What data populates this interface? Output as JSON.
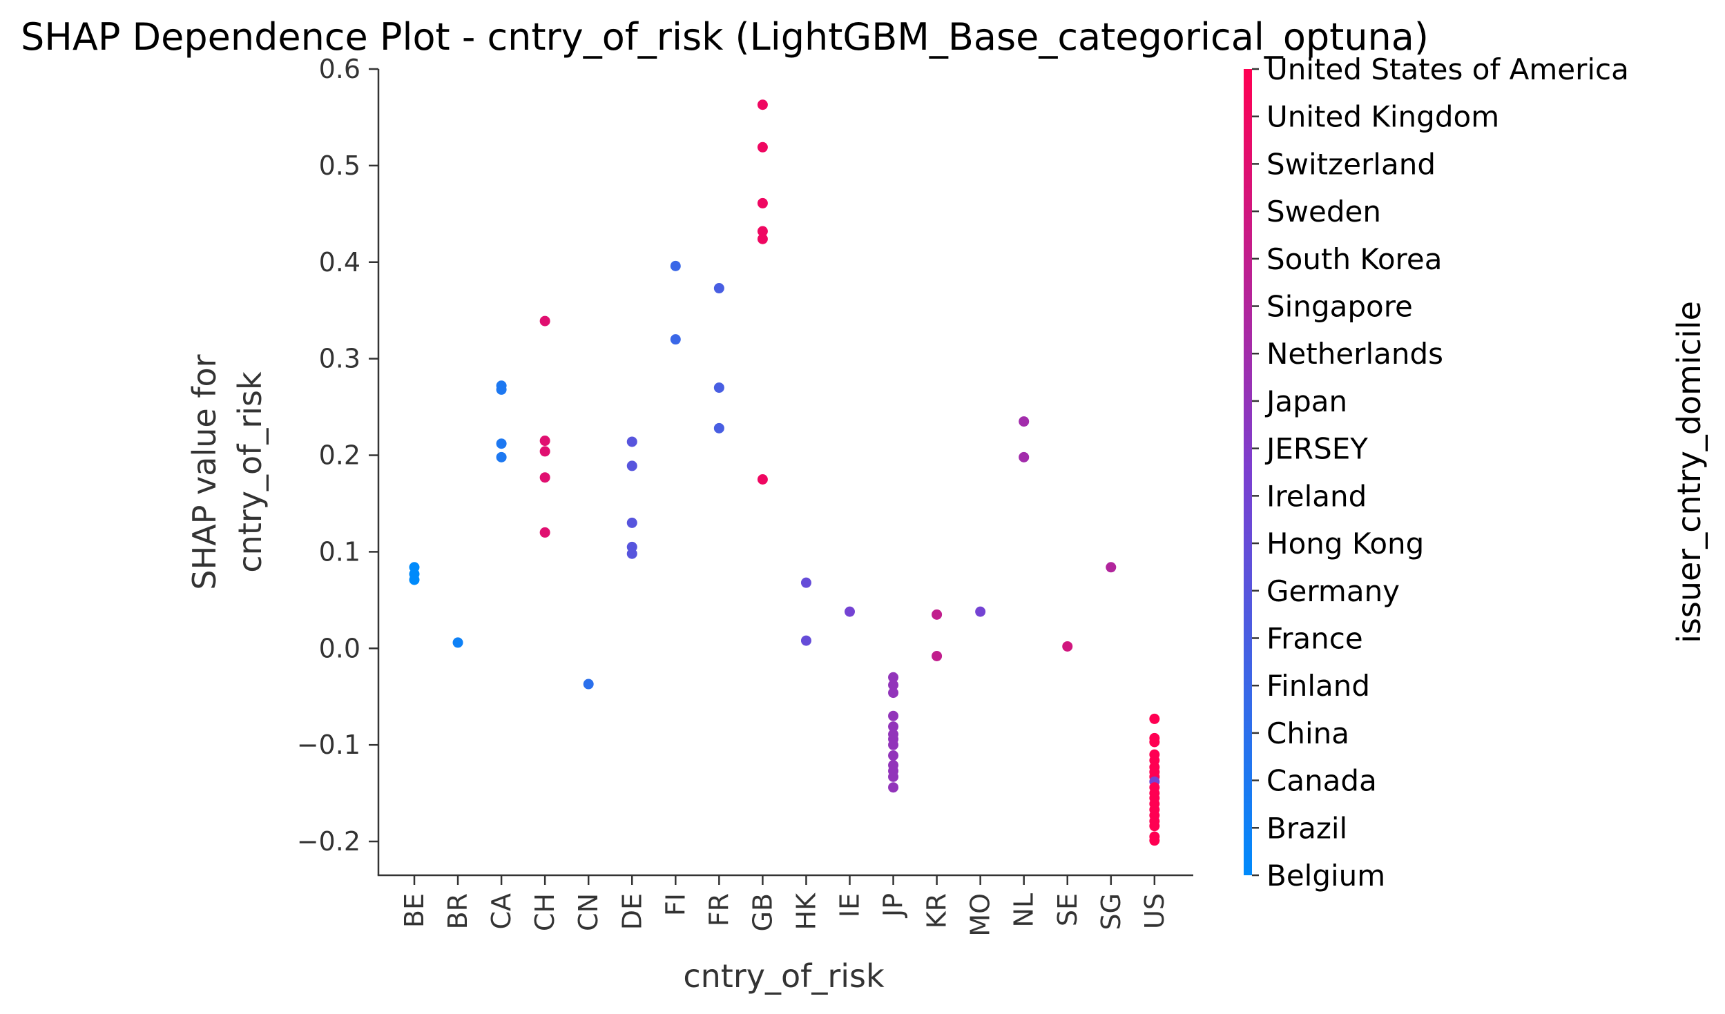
{
  "chart_data": {
    "type": "scatter",
    "title": "SHAP Dependence Plot - cntry_of_risk (LightGBM_Base_categorical_optuna)",
    "xlabel": "cntry_of_risk",
    "ylabel_lines": [
      "SHAP value for",
      "cntry_of_risk"
    ],
    "categories": [
      "BE",
      "BR",
      "CA",
      "CH",
      "CN",
      "DE",
      "FI",
      "FR",
      "GB",
      "HK",
      "IE",
      "JP",
      "KR",
      "MO",
      "NL",
      "SE",
      "SG",
      "US"
    ],
    "ylim": [
      -0.235,
      0.6
    ],
    "yticks": [
      -0.2,
      -0.1,
      0.0,
      0.1,
      0.2,
      0.3,
      0.4,
      0.5,
      0.6
    ],
    "ytick_labels": [
      "−0.2",
      "−0.1",
      "0.0",
      "0.1",
      "0.2",
      "0.3",
      "0.4",
      "0.5",
      "0.6"
    ],
    "grid": false,
    "colorbar": {
      "title": "issuer_cntry_domicile",
      "labels": [
        "Belgium",
        "Brazil",
        "Canada",
        "China",
        "Finland",
        "France",
        "Germany",
        "Hong Kong",
        "Ireland",
        "JERSEY",
        "Japan",
        "Netherlands",
        "Singapore",
        "South Korea",
        "Sweden",
        "Switzerland",
        "United Kingdom",
        "United States of America"
      ],
      "color_low": "#008afb",
      "color_mid": "#7b3fd0",
      "color_high": "#ff0052"
    },
    "points": [
      {
        "x": "BE",
        "y": 0.084,
        "c": 0
      },
      {
        "x": "BE",
        "y": 0.077,
        "c": 0
      },
      {
        "x": "BE",
        "y": 0.071,
        "c": 0
      },
      {
        "x": "BR",
        "y": 0.006,
        "c": 1
      },
      {
        "x": "CA",
        "y": 0.272,
        "c": 2
      },
      {
        "x": "CA",
        "y": 0.268,
        "c": 2
      },
      {
        "x": "CA",
        "y": 0.212,
        "c": 2
      },
      {
        "x": "CA",
        "y": 0.198,
        "c": 2
      },
      {
        "x": "CH",
        "y": 0.339,
        "c": 15
      },
      {
        "x": "CH",
        "y": 0.215,
        "c": 15
      },
      {
        "x": "CH",
        "y": 0.204,
        "c": 15
      },
      {
        "x": "CH",
        "y": 0.177,
        "c": 15
      },
      {
        "x": "CH",
        "y": 0.12,
        "c": 15
      },
      {
        "x": "CN",
        "y": -0.037,
        "c": 3
      },
      {
        "x": "DE",
        "y": 0.214,
        "c": 6
      },
      {
        "x": "DE",
        "y": 0.189,
        "c": 6
      },
      {
        "x": "DE",
        "y": 0.13,
        "c": 6
      },
      {
        "x": "DE",
        "y": 0.105,
        "c": 6
      },
      {
        "x": "DE",
        "y": 0.098,
        "c": 6
      },
      {
        "x": "FI",
        "y": 0.396,
        "c": 4
      },
      {
        "x": "FI",
        "y": 0.32,
        "c": 4
      },
      {
        "x": "FR",
        "y": 0.373,
        "c": 5
      },
      {
        "x": "FR",
        "y": 0.27,
        "c": 5
      },
      {
        "x": "FR",
        "y": 0.228,
        "c": 5
      },
      {
        "x": "GB",
        "y": 0.563,
        "c": 16
      },
      {
        "x": "GB",
        "y": 0.519,
        "c": 16
      },
      {
        "x": "GB",
        "y": 0.461,
        "c": 16
      },
      {
        "x": "GB",
        "y": 0.432,
        "c": 16
      },
      {
        "x": "GB",
        "y": 0.424,
        "c": 16
      },
      {
        "x": "GB",
        "y": 0.175,
        "c": 16
      },
      {
        "x": "HK",
        "y": 0.068,
        "c": 7
      },
      {
        "x": "HK",
        "y": 0.008,
        "c": 7
      },
      {
        "x": "IE",
        "y": 0.038,
        "c": 8
      },
      {
        "x": "JP",
        "y": -0.03,
        "c": 10
      },
      {
        "x": "JP",
        "y": -0.038,
        "c": 10
      },
      {
        "x": "JP",
        "y": -0.046,
        "c": 10
      },
      {
        "x": "JP",
        "y": -0.07,
        "c": 10
      },
      {
        "x": "JP",
        "y": -0.081,
        "c": 10
      },
      {
        "x": "JP",
        "y": -0.089,
        "c": 10
      },
      {
        "x": "JP",
        "y": -0.094,
        "c": 10
      },
      {
        "x": "JP",
        "y": -0.1,
        "c": 10
      },
      {
        "x": "JP",
        "y": -0.111,
        "c": 10
      },
      {
        "x": "JP",
        "y": -0.121,
        "c": 10
      },
      {
        "x": "JP",
        "y": -0.127,
        "c": 10
      },
      {
        "x": "JP",
        "y": -0.133,
        "c": 10
      },
      {
        "x": "JP",
        "y": -0.144,
        "c": 10
      },
      {
        "x": "KR",
        "y": 0.035,
        "c": 13
      },
      {
        "x": "KR",
        "y": -0.008,
        "c": 13
      },
      {
        "x": "MO",
        "y": 0.038,
        "c": 8
      },
      {
        "x": "NL",
        "y": 0.235,
        "c": 11
      },
      {
        "x": "NL",
        "y": 0.198,
        "c": 11
      },
      {
        "x": "SE",
        "y": 0.002,
        "c": 14
      },
      {
        "x": "SG",
        "y": 0.084,
        "c": 12
      },
      {
        "x": "US",
        "y": -0.073,
        "c": 17
      },
      {
        "x": "US",
        "y": -0.093,
        "c": 17
      },
      {
        "x": "US",
        "y": -0.097,
        "c": 17
      },
      {
        "x": "US",
        "y": -0.11,
        "c": 17
      },
      {
        "x": "US",
        "y": -0.116,
        "c": 17
      },
      {
        "x": "US",
        "y": -0.123,
        "c": 17
      },
      {
        "x": "US",
        "y": -0.128,
        "c": 17
      },
      {
        "x": "US",
        "y": -0.133,
        "c": 17
      },
      {
        "x": "US",
        "y": -0.138,
        "c": 8
      },
      {
        "x": "US",
        "y": -0.144,
        "c": 17
      },
      {
        "x": "US",
        "y": -0.15,
        "c": 17
      },
      {
        "x": "US",
        "y": -0.155,
        "c": 17
      },
      {
        "x": "US",
        "y": -0.161,
        "c": 17
      },
      {
        "x": "US",
        "y": -0.167,
        "c": 17
      },
      {
        "x": "US",
        "y": -0.173,
        "c": 17
      },
      {
        "x": "US",
        "y": -0.179,
        "c": 17
      },
      {
        "x": "US",
        "y": -0.184,
        "c": 17
      },
      {
        "x": "US",
        "y": -0.195,
        "c": 17
      },
      {
        "x": "US",
        "y": -0.199,
        "c": 17
      }
    ]
  }
}
